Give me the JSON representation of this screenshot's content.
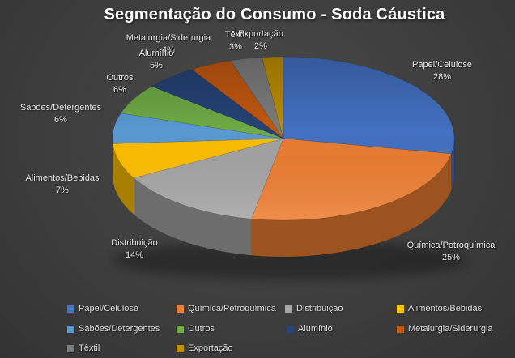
{
  "title": "Segmentação do Consumo - Soda Cáustica",
  "chart_data": {
    "type": "pie",
    "style": "3d",
    "title": "Segmentação do Consumo - Soda Cáustica",
    "unit": "%",
    "categories": [
      "Papel/Celulose",
      "Química/Petroquímica",
      "Distribuição",
      "Alimentos/Bebidas",
      "Sabões/Detergentes",
      "Outros",
      "Alumínio",
      "Metalurgia/Siderurgia",
      "Têxtil",
      "Exportação"
    ],
    "values": [
      28,
      25,
      14,
      7,
      6,
      6,
      5,
      4,
      3,
      2
    ],
    "colors": [
      "#4472C4",
      "#ED7D31",
      "#A5A5A5",
      "#FFC000",
      "#5B9BD5",
      "#70AD47",
      "#264478",
      "#C55A11",
      "#7F7F7F",
      "#BF9000"
    ],
    "data_labels": "category name + percent",
    "legend_position": "bottom",
    "background_color": "#3F3F3F",
    "title_color": "#FFFFFF",
    "label_color": "#E3E3E3"
  }
}
